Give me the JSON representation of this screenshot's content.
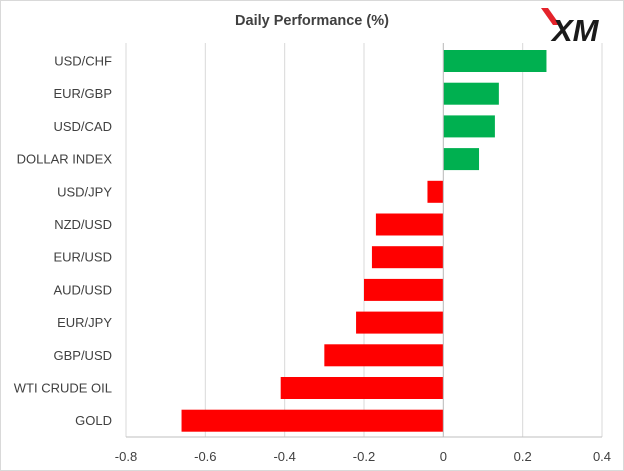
{
  "logo": {
    "text": "XM",
    "accent_color": "#e4232b"
  },
  "chart_data": {
    "type": "bar",
    "orientation": "horizontal",
    "title": "Daily Performance (%)",
    "xlabel": "",
    "ylabel": "",
    "categories": [
      "USD/CHF",
      "EUR/GBP",
      "USD/CAD",
      "DOLLAR INDEX",
      "USD/JPY",
      "NZD/USD",
      "EUR/USD",
      "AUD/USD",
      "EUR/JPY",
      "GBP/USD",
      "WTI CRUDE OIL",
      "GOLD"
    ],
    "values": [
      0.26,
      0.14,
      0.13,
      0.09,
      -0.04,
      -0.17,
      -0.18,
      -0.2,
      -0.22,
      -0.3,
      -0.41,
      -0.66
    ],
    "xlim": [
      -0.8,
      0.4
    ],
    "xticks": [
      -0.8,
      -0.6,
      -0.4,
      -0.2,
      0,
      0.2,
      0.4
    ],
    "xtick_labels": [
      "-0.8",
      "-0.6",
      "-0.4",
      "-0.2",
      "0",
      "0.2",
      "0.4"
    ],
    "grid": "vertical",
    "legend": "none",
    "colors": {
      "positive": "#00b050",
      "negative": "#ff0000",
      "gridline": "#d9d9d9",
      "axis": "#bfbfbf",
      "text": "#404040"
    }
  }
}
